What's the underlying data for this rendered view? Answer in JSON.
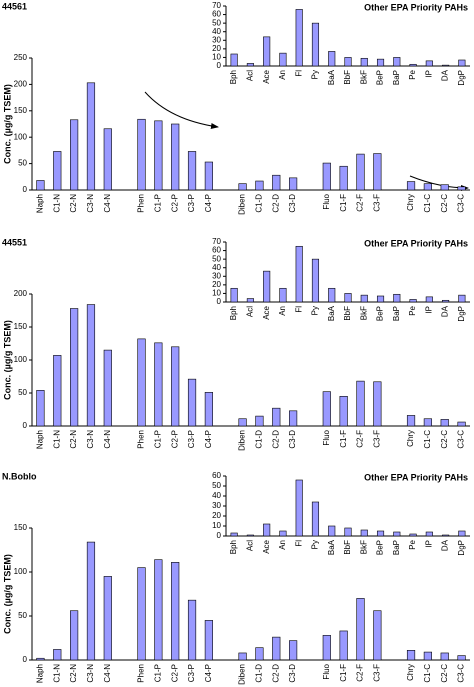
{
  "chart_data": [
    {
      "type": "bar",
      "title": "44561",
      "y_label": "Conc. (µg/g TSEM)",
      "color": "#9999ff",
      "categories": [
        "Naph",
        "C1-N",
        "C2-N",
        "C3-N",
        "C4-N",
        null,
        "Phen",
        "C1-P",
        "C2-P",
        "C3-P",
        "C4-P",
        null,
        "Diben",
        "C1-D",
        "C2-D",
        "C3-D",
        null,
        "Fluo",
        "C1-F",
        "C2-F",
        "C3-F",
        null,
        "Chry",
        "C1-C",
        "C2-C",
        "C3-C"
      ],
      "values": [
        18,
        73,
        133,
        203,
        116,
        null,
        134,
        131,
        125,
        73,
        53,
        null,
        12,
        17,
        28,
        23,
        null,
        51,
        45,
        68,
        69,
        null,
        16,
        12,
        10,
        6
      ],
      "ylim": [
        0,
        250
      ],
      "yticks": [
        0,
        50,
        100,
        150,
        200,
        250
      ]
    },
    {
      "type": "bar",
      "title": "Other EPA Priority PAHs",
      "color": "#9999ff",
      "categories": [
        "Bph",
        "Acl",
        "Ace",
        "An",
        "Fl",
        "Py",
        "BaA",
        "BbF",
        "BkF",
        "BeP",
        "BaP",
        "Pe",
        "IP",
        "DA",
        "DgP"
      ],
      "values": [
        14,
        3,
        34,
        15,
        66,
        50,
        17,
        10,
        9,
        8,
        10,
        2,
        6,
        1,
        7
      ],
      "ylim": [
        0,
        70
      ],
      "yticks": [
        0,
        10,
        20,
        30,
        40,
        50,
        60,
        70
      ]
    },
    {
      "type": "bar",
      "title": "44551",
      "y_label": "Conc. (µg/g TSEM)",
      "color": "#9999ff",
      "categories": [
        "Naph",
        "C1-N",
        "C2-N",
        "C3-N",
        "C4-N",
        null,
        "Phen",
        "C1-P",
        "C2-P",
        "C3-P",
        "C4-P",
        null,
        "Diben",
        "C1-D",
        "C2-D",
        "C3-D",
        null,
        "Fluo",
        "C1-F",
        "C2-F",
        "C3-F",
        null,
        "Chry",
        "C1-C",
        "C2-C",
        "C3-C"
      ],
      "values": [
        54,
        107,
        178,
        184,
        115,
        null,
        132,
        126,
        120,
        71,
        51,
        null,
        11,
        15,
        27,
        23,
        null,
        52,
        45,
        68,
        67,
        null,
        16,
        11,
        10,
        6
      ],
      "ylim": [
        0,
        200
      ],
      "yticks": [
        0,
        50,
        100,
        150,
        200
      ]
    },
    {
      "type": "bar",
      "title": "Other EPA Priority PAHs",
      "color": "#9999ff",
      "categories": [
        "Bph",
        "Acl",
        "Ace",
        "An",
        "Fl",
        "Py",
        "BaA",
        "BbF",
        "BkF",
        "BeP",
        "BaP",
        "Pe",
        "IP",
        "DA",
        "DgP"
      ],
      "values": [
        16,
        4,
        36,
        16,
        65,
        50,
        16,
        10,
        8,
        7,
        9,
        3,
        6,
        2,
        8
      ],
      "ylim": [
        0,
        70
      ],
      "yticks": [
        0,
        10,
        20,
        30,
        40,
        50,
        60,
        70
      ]
    },
    {
      "type": "bar",
      "title": "N.Boblo",
      "y_label": "Conc. (µg/g TSEM)",
      "color": "#9999ff",
      "categories": [
        "Naph",
        "C1-N",
        "C2-N",
        "C3-N",
        "C4-N",
        null,
        "Phen",
        "C1-P",
        "C2-P",
        "C3-P",
        "C4-P",
        null,
        "Diben",
        "C1-D",
        "C2-D",
        "C3-D",
        null,
        "Fluo",
        "C1-F",
        "C2-F",
        "C3-F",
        null,
        "Chry",
        "C1-C",
        "C2-C",
        "C3-C"
      ],
      "values": [
        2,
        12,
        56,
        134,
        95,
        null,
        105,
        114,
        111,
        68,
        45,
        null,
        8,
        14,
        26,
        22,
        null,
        28,
        33,
        70,
        56,
        null,
        11,
        9,
        8,
        5
      ],
      "ylim": [
        0,
        150
      ],
      "yticks": [
        0,
        50,
        100,
        150
      ]
    },
    {
      "type": "bar",
      "title": "Other EPA Priority PAHs",
      "color": "#9999ff",
      "categories": [
        "Bph",
        "Acl",
        "Ace",
        "An",
        "Fl",
        "Py",
        "BaA",
        "BbF",
        "BkF",
        "BeP",
        "BaP",
        "Pe",
        "IP",
        "DA",
        "DgP"
      ],
      "values": [
        3,
        1,
        12,
        5,
        56,
        34,
        10,
        8,
        6,
        5,
        4,
        2,
        4,
        1,
        5
      ],
      "ylim": [
        0,
        60
      ],
      "yticks": [
        0,
        10,
        20,
        30,
        40,
        50,
        60
      ]
    }
  ]
}
